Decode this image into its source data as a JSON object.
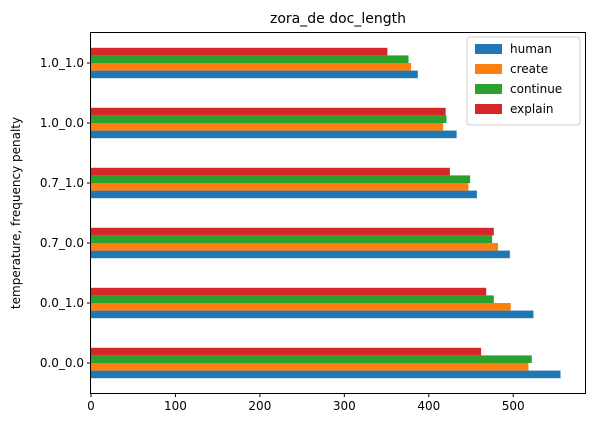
{
  "chart_data": {
    "type": "bar",
    "orientation": "horizontal",
    "title": "zora_de doc_length",
    "xlabel": "",
    "ylabel": "temperature, frequency penalty",
    "categories": [
      "0.0_0.0",
      "0.0_1.0",
      "0.7_0.0",
      "0.7_1.0",
      "1.0_0.0",
      "1.0_1.0"
    ],
    "series": [
      {
        "name": "human",
        "color": "#1f77b4",
        "values": [
          556,
          524,
          496,
          457,
          433,
          387
        ]
      },
      {
        "name": "create",
        "color": "#ff7f0e",
        "values": [
          518,
          497,
          482,
          447,
          417,
          379
        ]
      },
      {
        "name": "continue",
        "color": "#2ca02c",
        "values": [
          522,
          477,
          475,
          449,
          421,
          376
        ]
      },
      {
        "name": "explain",
        "color": "#d62728",
        "values": [
          462,
          468,
          477,
          425,
          420,
          351
        ]
      }
    ],
    "xlim": [
      0,
      585
    ],
    "xticks": [
      0,
      100,
      200,
      300,
      400,
      500
    ],
    "grid": false,
    "legend_position": "top-right"
  }
}
